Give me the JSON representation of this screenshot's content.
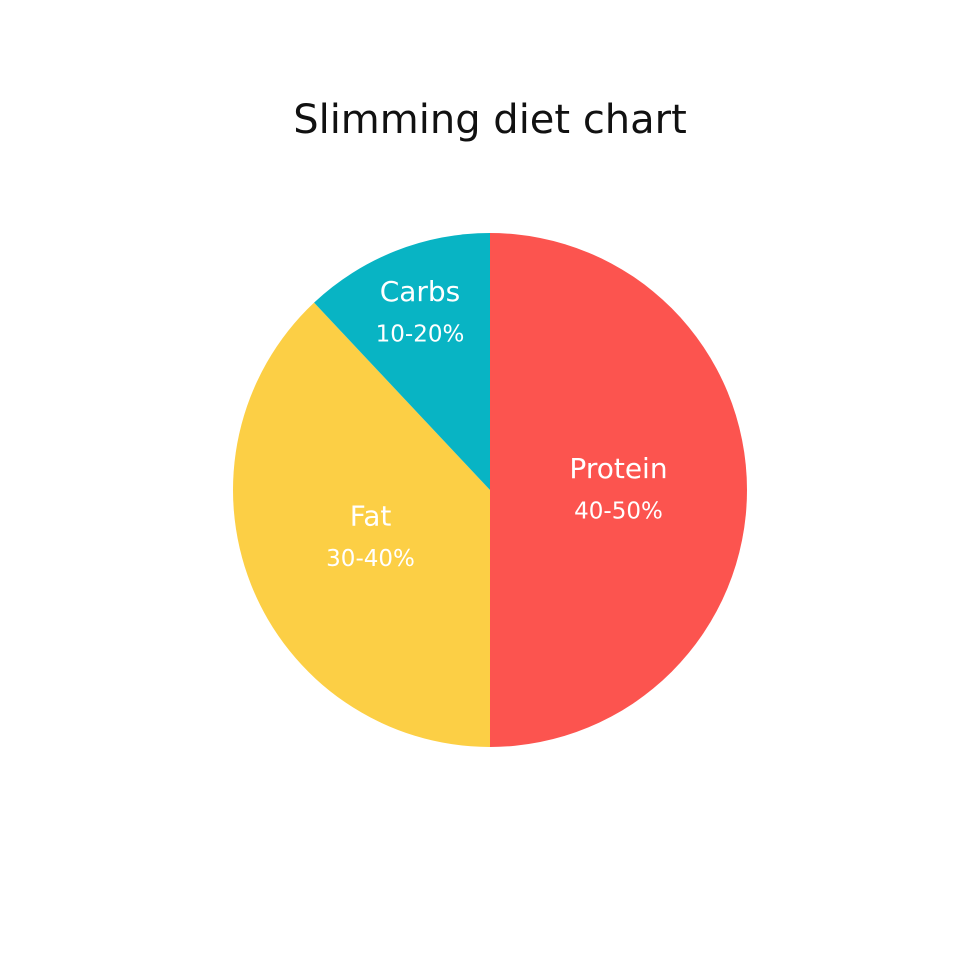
{
  "chart_data": {
    "type": "pie",
    "title": "Slimming diet chart",
    "categories": [
      "Protein",
      "Fat",
      "Carbs"
    ],
    "values": [
      50,
      38,
      12
    ],
    "ranges": [
      "40-50%",
      "30-40%",
      "10-20%"
    ],
    "colors": [
      "#fc544f",
      "#fccf45",
      "#08b4c4"
    ]
  }
}
